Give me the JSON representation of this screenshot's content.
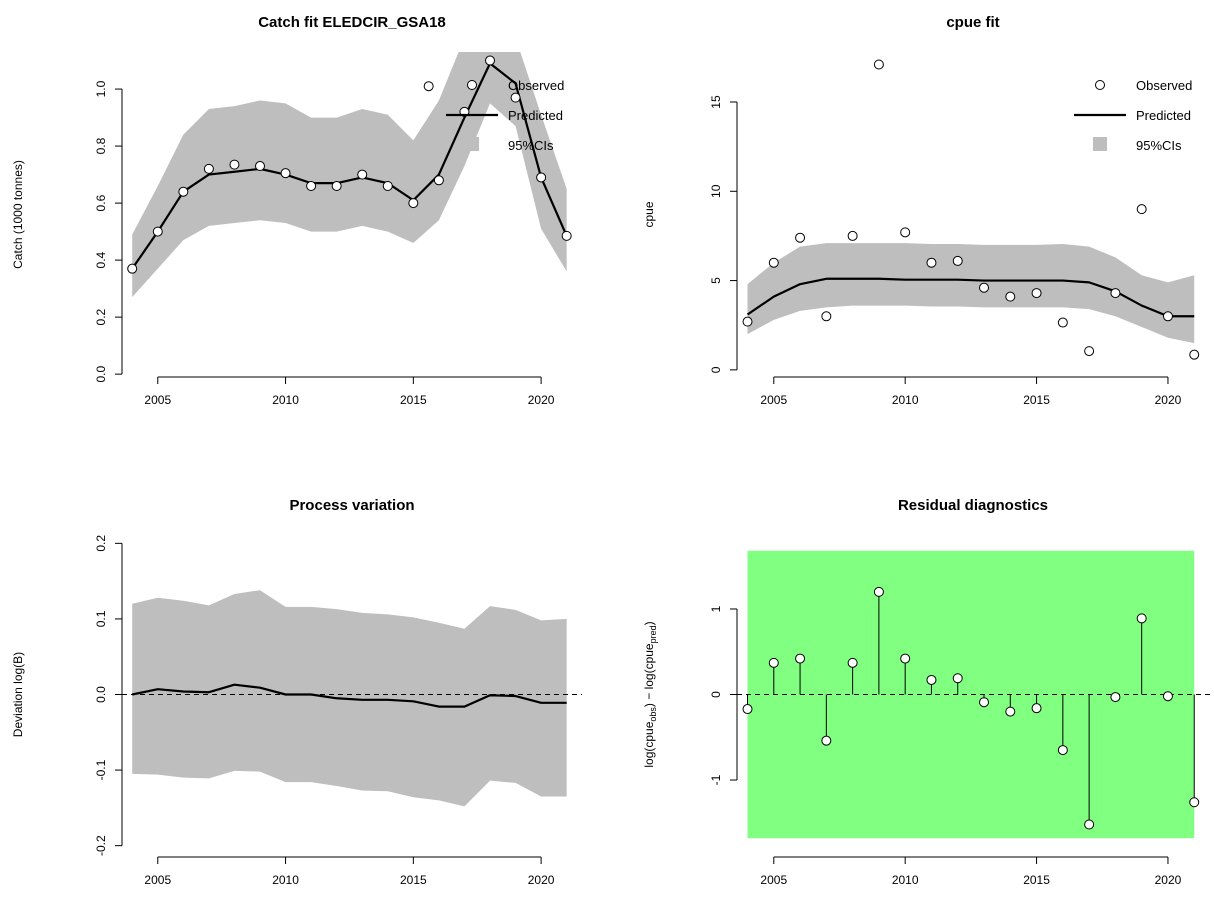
{
  "chart_data": [
    {
      "type": "line",
      "title": "Catch fit ELEDCIR_GSA18",
      "xlabel": "",
      "ylabel": "Catch (1000 tonnes)",
      "xlim": [
        2003.6,
        2021.6
      ],
      "ylim": [
        -0.01,
        1.13
      ],
      "x_ticks": [
        2005,
        2010,
        2015,
        2020
      ],
      "y_ticks": [
        0.0,
        0.2,
        0.4,
        0.6,
        0.8,
        1.0
      ],
      "y_tick_labels": [
        "0.0",
        "0.2",
        "0.4",
        "0.6",
        "0.8",
        "1.0"
      ],
      "x": [
        2004,
        2005,
        2006,
        2007,
        2008,
        2009,
        2010,
        2011,
        2012,
        2013,
        2014,
        2015,
        2016,
        2017,
        2018,
        2019,
        2020,
        2021
      ],
      "observed": {
        "x": [
          2004,
          2005,
          2006,
          2007,
          2008,
          2009,
          2010,
          2011,
          2012,
          2013,
          2014,
          2015,
          2015.6,
          2016,
          2017,
          2018,
          2019,
          2020,
          2021
        ],
        "y": [
          0.37,
          0.5,
          0.64,
          0.72,
          0.735,
          0.73,
          0.705,
          0.66,
          0.66,
          0.7,
          0.66,
          0.6,
          1.01,
          0.68,
          0.92,
          1.1,
          0.97,
          0.69,
          0.485
        ]
      },
      "predicted": [
        0.37,
        0.5,
        0.64,
        0.7,
        0.71,
        0.72,
        0.7,
        0.67,
        0.67,
        0.69,
        0.67,
        0.61,
        0.7,
        0.9,
        1.09,
        1.02,
        0.69,
        0.485
      ],
      "ci_upper": [
        0.49,
        0.66,
        0.84,
        0.93,
        0.94,
        0.96,
        0.95,
        0.9,
        0.9,
        0.93,
        0.91,
        0.82,
        0.96,
        1.18,
        1.25,
        1.18,
        0.91,
        0.65
      ],
      "ci_lower": [
        0.27,
        0.37,
        0.47,
        0.52,
        0.53,
        0.54,
        0.53,
        0.5,
        0.5,
        0.52,
        0.5,
        0.46,
        0.54,
        0.73,
        0.95,
        0.87,
        0.51,
        0.36
      ],
      "legend": {
        "observed": "Observed",
        "predicted": "Predicted",
        "ci": "95%CIs",
        "placement": "top-right"
      }
    },
    {
      "type": "line",
      "title": "cpue fit",
      "xlabel": "",
      "ylabel": "cpue",
      "xlim": [
        2003.6,
        2021.6
      ],
      "ylim": [
        -0.4,
        17.8
      ],
      "x_ticks": [
        2005,
        2010,
        2015,
        2020
      ],
      "y_ticks": [
        0,
        5,
        10,
        15
      ],
      "y_tick_labels": [
        "0",
        "5",
        "10",
        "15"
      ],
      "x": [
        2004,
        2005,
        2006,
        2007,
        2008,
        2009,
        2010,
        2011,
        2012,
        2013,
        2014,
        2015,
        2016,
        2017,
        2018,
        2019,
        2020,
        2021
      ],
      "observed": {
        "x": [
          2004,
          2005,
          2006,
          2007,
          2008,
          2009,
          2010,
          2011,
          2012,
          2013,
          2014,
          2015,
          2016,
          2017,
          2018,
          2019,
          2020,
          2021
        ],
        "y": [
          2.7,
          6.0,
          7.4,
          3.0,
          7.5,
          17.1,
          7.7,
          6.0,
          6.1,
          4.6,
          4.1,
          4.3,
          2.65,
          1.05,
          4.3,
          9.0,
          3.0,
          0.85
        ]
      },
      "predicted": [
        3.1,
        4.1,
        4.8,
        5.1,
        5.1,
        5.1,
        5.05,
        5.05,
        5.05,
        5.0,
        5.0,
        5.0,
        5.0,
        4.9,
        4.4,
        3.6,
        3.0,
        3.0
      ],
      "ci_upper": [
        4.8,
        6.0,
        6.9,
        7.1,
        7.1,
        7.1,
        7.1,
        7.05,
        7.05,
        7.0,
        7.0,
        7.0,
        7.05,
        6.9,
        6.3,
        5.3,
        4.9,
        5.3
      ],
      "ci_lower": [
        2.0,
        2.8,
        3.3,
        3.5,
        3.6,
        3.6,
        3.6,
        3.55,
        3.55,
        3.5,
        3.5,
        3.5,
        3.5,
        3.4,
        3.0,
        2.4,
        1.8,
        1.5
      ],
      "legend": {
        "observed": "Observed",
        "predicted": "Predicted",
        "ci": "95%CIs",
        "placement": "top-right"
      }
    },
    {
      "type": "line",
      "title": "Process variation",
      "xlabel": "",
      "ylabel": "Deviation log(B)",
      "xlim": [
        2003.6,
        2021.6
      ],
      "ylim": [
        -0.215,
        0.215
      ],
      "x_ticks": [
        2005,
        2010,
        2015,
        2020
      ],
      "y_ticks": [
        -0.2,
        -0.1,
        0.0,
        0.1,
        0.2
      ],
      "y_tick_labels": [
        "-0.2",
        "-0.1",
        "0.0",
        "0.1",
        "0.2"
      ],
      "reference_line_y": 0,
      "x": [
        2004,
        2005,
        2006,
        2007,
        2008,
        2009,
        2010,
        2011,
        2012,
        2013,
        2014,
        2015,
        2016,
        2017,
        2018,
        2019,
        2020,
        2021
      ],
      "deviation": [
        0.0,
        0.007,
        0.004,
        0.003,
        0.013,
        0.009,
        0.0,
        0.0,
        -0.005,
        -0.007,
        -0.007,
        -0.009,
        -0.016,
        -0.016,
        -0.001,
        -0.002,
        -0.011,
        -0.011
      ],
      "ci_upper": [
        0.12,
        0.128,
        0.124,
        0.118,
        0.133,
        0.138,
        0.116,
        0.116,
        0.113,
        0.108,
        0.106,
        0.102,
        0.095,
        0.087,
        0.117,
        0.112,
        0.098,
        0.1
      ],
      "ci_lower": [
        -0.105,
        -0.106,
        -0.11,
        -0.111,
        -0.101,
        -0.102,
        -0.116,
        -0.116,
        -0.121,
        -0.127,
        -0.128,
        -0.136,
        -0.14,
        -0.148,
        -0.114,
        -0.117,
        -0.135,
        -0.135
      ]
    },
    {
      "type": "scatter",
      "title": "Residual diagnostics",
      "xlabel": "",
      "ylabel": "log(cpue_obs) - log(cpue_pred)",
      "ylabel_parts": {
        "a": "log(cpue",
        "a_sub": "obs",
        "b": ") − log(cpue",
        "b_sub": "pred",
        "c": ")"
      },
      "xlim": [
        2003.6,
        2021.6
      ],
      "ylim": [
        -1.9,
        1.9
      ],
      "x_ticks": [
        2005,
        2010,
        2015,
        2020
      ],
      "y_ticks": [
        -1,
        0,
        1
      ],
      "y_tick_labels": [
        "-1",
        "0",
        "1"
      ],
      "reference_line_y": 0,
      "background_band": {
        "ymin": -1.68,
        "ymax": 1.68,
        "color": "#80ff80"
      },
      "x": [
        2004,
        2005,
        2006,
        2007,
        2008,
        2009,
        2010,
        2011,
        2012,
        2013,
        2014,
        2015,
        2016,
        2017,
        2018,
        2019,
        2020,
        2021
      ],
      "residuals": [
        -0.17,
        0.37,
        0.42,
        -0.54,
        0.37,
        1.2,
        0.42,
        0.17,
        0.19,
        -0.09,
        -0.2,
        -0.16,
        -0.65,
        -1.52,
        -0.03,
        0.89,
        -0.02,
        -1.26
      ]
    }
  ],
  "colors": {
    "ci_band": "#bebebe",
    "line": "#000000",
    "point_fill": "#ffffff",
    "band_green": "#80ff80"
  }
}
